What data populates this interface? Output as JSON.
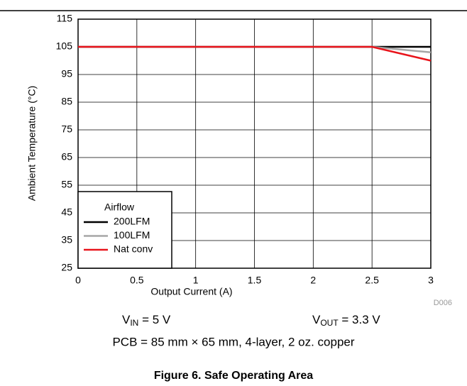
{
  "chart_data": {
    "type": "line",
    "x_label": "Output Current (A)",
    "y_label": "Ambient Temperature (°C)",
    "x": [
      0,
      2.5,
      3
    ],
    "series": [
      {
        "name": "200LFM",
        "color": "#000000",
        "values": [
          105,
          105,
          105
        ]
      },
      {
        "name": "100LFM",
        "color": "#a6a6a6",
        "values": [
          105,
          105,
          103
        ]
      },
      {
        "name": "Nat conv",
        "color": "#e8141b",
        "values": [
          105,
          105,
          100
        ]
      }
    ],
    "legend_title": "Airflow",
    "legend_position": "lower left",
    "xlim": [
      0,
      3
    ],
    "xticks": [
      0,
      0.5,
      1,
      1.5,
      2,
      2.5,
      3
    ],
    "ylim": [
      25,
      115
    ],
    "yticks": [
      25,
      35,
      45,
      55,
      65,
      75,
      85,
      95,
      105,
      115
    ],
    "grid": true,
    "figure_id": "D006",
    "annotations": {
      "vin": {
        "main": "V",
        "sub": "IN",
        "rest": " = 5 V"
      },
      "vout": {
        "main": "V",
        "sub": "OUT",
        "rest": " = 3.3 V"
      },
      "pcb": "PCB = 85 mm × 65 mm, 4-layer, 2 oz. copper"
    },
    "caption": "Figure 6. Safe Operating Area"
  }
}
